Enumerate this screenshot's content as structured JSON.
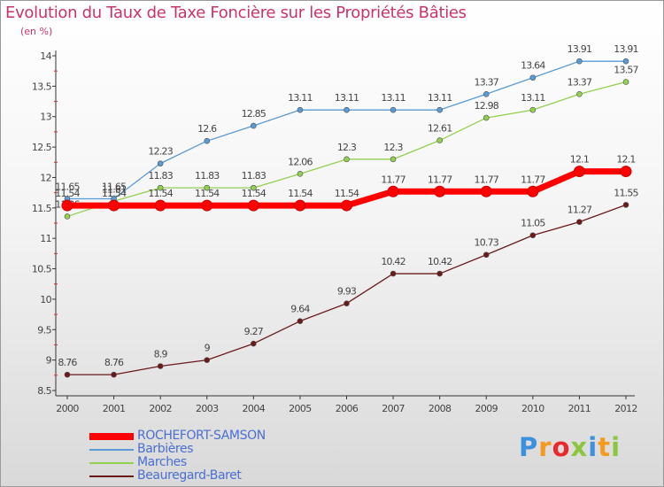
{
  "chart_data": {
    "type": "line",
    "title": "Evolution du Taux de Taxe Foncière sur les Propriétés Bâties",
    "subtitle": "(en %)",
    "x": [
      "2000",
      "2001",
      "2002",
      "2003",
      "2004",
      "2005",
      "2006",
      "2007",
      "2008",
      "2009",
      "2010",
      "2011",
      "2012"
    ],
    "ylim": [
      8.5,
      14
    ],
    "yticks": [
      8.5,
      9,
      9.5,
      10,
      10.5,
      11,
      11.5,
      12,
      12.5,
      13,
      13.5,
      14
    ],
    "grid": false,
    "legend_position": "bottom-left",
    "series": [
      {
        "name": "ROCHEFORT-SAMSON",
        "color": "#ff0000",
        "values": [
          11.54,
          11.54,
          11.54,
          11.54,
          11.54,
          11.54,
          11.54,
          11.77,
          11.77,
          11.77,
          11.77,
          12.1,
          12.1
        ]
      },
      {
        "name": "Barbières",
        "color": "#5a9bd5",
        "values": [
          11.65,
          11.65,
          12.23,
          12.6,
          12.85,
          13.11,
          13.11,
          13.11,
          13.11,
          13.37,
          13.64,
          13.91,
          13.91
        ]
      },
      {
        "name": "Marches",
        "color": "#92d050",
        "values": [
          11.36,
          11.61,
          11.83,
          11.83,
          11.83,
          12.06,
          12.3,
          12.3,
          12.61,
          12.98,
          13.11,
          13.37,
          13.57
        ]
      },
      {
        "name": "Beauregard-Baret",
        "color": "#6b1a1a",
        "values": [
          8.76,
          8.76,
          8.9,
          9,
          9.27,
          9.64,
          9.93,
          10.42,
          10.42,
          10.73,
          11.05,
          11.27,
          11.55
        ]
      }
    ]
  },
  "logo": {
    "text": "Proxiti",
    "letters": [
      {
        "char": "P",
        "color": "#3d8fe0"
      },
      {
        "char": "r",
        "color": "#f39a1f"
      },
      {
        "char": "o",
        "color": "#e8292d"
      },
      {
        "char": "x",
        "color": "#8cc63f"
      },
      {
        "char": "i",
        "color": "#3d8fe0"
      },
      {
        "char": "t",
        "color": "#f39a1f"
      },
      {
        "char": "i",
        "color": "#8cc63f"
      }
    ]
  }
}
